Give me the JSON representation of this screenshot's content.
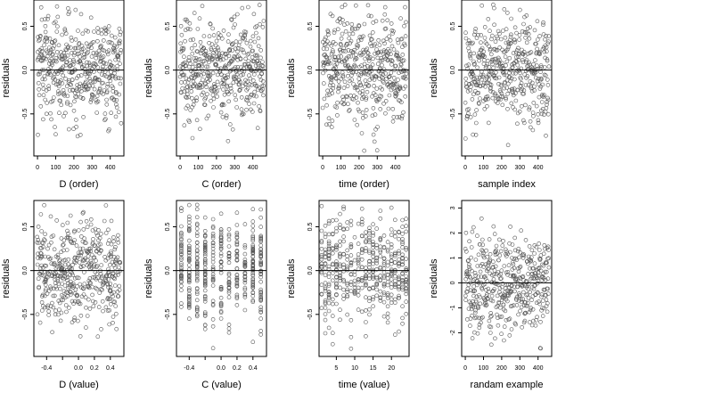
{
  "chart_data": [
    {
      "type": "scatter",
      "id": "p1",
      "xlabel": "D (order)",
      "ylabel": "residuals",
      "xlim": [
        -20,
        475
      ],
      "ylim": [
        -0.98,
        0.8
      ],
      "xticks": [
        0,
        100,
        200,
        300,
        400
      ],
      "xtick_labels": [
        "0",
        "100",
        "200",
        "300",
        "400"
      ],
      "yticks": [
        -0.5,
        0,
        0.5
      ],
      "ytick_labels": [
        "-0.5",
        "0.0",
        "0.5"
      ],
      "hline": 0,
      "n_points": 460,
      "x_mode": "index",
      "x_range": [
        0,
        460
      ],
      "y_mean": 0.02,
      "y_sd": 0.3,
      "y_range": [
        -0.92,
        0.75
      ]
    },
    {
      "type": "scatter",
      "id": "p2",
      "xlabel": "C (order)",
      "ylabel": "residuals",
      "xlim": [
        -20,
        475
      ],
      "ylim": [
        -0.98,
        0.8
      ],
      "xticks": [
        0,
        100,
        200,
        300,
        400
      ],
      "xtick_labels": [
        "0",
        "100",
        "200",
        "300",
        "400"
      ],
      "yticks": [
        -0.5,
        0,
        0.5
      ],
      "ytick_labels": [
        "-0.5",
        "0.0",
        "0.5"
      ],
      "hline": 0,
      "n_points": 460,
      "x_mode": "index",
      "x_range": [
        0,
        460
      ],
      "y_mean": 0.02,
      "y_sd": 0.3,
      "y_range": [
        -0.92,
        0.75
      ]
    },
    {
      "type": "scatter",
      "id": "p3",
      "xlabel": "time (order)",
      "ylabel": "residuals",
      "xlim": [
        -20,
        475
      ],
      "ylim": [
        -0.98,
        0.8
      ],
      "xticks": [
        0,
        100,
        200,
        300,
        400
      ],
      "xtick_labels": [
        "0",
        "100",
        "200",
        "300",
        "400"
      ],
      "yticks": [
        -0.5,
        0,
        0.5
      ],
      "ytick_labels": [
        "-0.5",
        "0.0",
        "0.5"
      ],
      "hline": 0,
      "n_points": 460,
      "x_mode": "index",
      "x_range": [
        0,
        460
      ],
      "y_mean": 0.02,
      "y_sd": 0.3,
      "y_range": [
        -0.92,
        0.75
      ]
    },
    {
      "type": "scatter",
      "id": "p4",
      "xlabel": "sample index",
      "ylabel": "residuals",
      "xlim": [
        -20,
        475
      ],
      "ylim": [
        -0.98,
        0.8
      ],
      "xticks": [
        0,
        100,
        200,
        300,
        400
      ],
      "xtick_labels": [
        "0",
        "100",
        "200",
        "300",
        "400"
      ],
      "yticks": [
        -0.5,
        0,
        0.5
      ],
      "ytick_labels": [
        "-0.5",
        "0.0",
        "0.5"
      ],
      "hline": 0,
      "n_points": 460,
      "x_mode": "index",
      "x_range": [
        0,
        460
      ],
      "y_mean": 0.02,
      "y_sd": 0.3,
      "y_range": [
        -0.92,
        0.75
      ]
    },
    {
      "type": "scatter",
      "id": "p5",
      "xlabel": "D (value)",
      "ylabel": "residuals",
      "xlim": [
        -0.56,
        0.57
      ],
      "ylim": [
        -0.98,
        0.8
      ],
      "xticks": [
        -0.4,
        -0.2,
        0.0,
        0.2,
        0.4
      ],
      "xtick_labels": [
        "-0.4",
        "",
        "0.0",
        "0.2",
        "0.4"
      ],
      "yticks": [
        -0.5,
        0,
        0.5
      ],
      "ytick_labels": [
        "-0.5",
        "0.0",
        "0.5"
      ],
      "hline": 0,
      "n_points": 460,
      "x_mode": "uniform",
      "x_range": [
        -0.52,
        0.53
      ],
      "y_mean": 0.02,
      "y_sd": 0.3,
      "y_range": [
        -0.92,
        0.75
      ]
    },
    {
      "type": "scatter",
      "id": "p6",
      "xlabel": "C (value)",
      "ylabel": "residuals",
      "xlim": [
        -0.56,
        0.57
      ],
      "ylim": [
        -0.98,
        0.8
      ],
      "xticks": [
        -0.4,
        -0.2,
        0.0,
        0.2,
        0.4
      ],
      "xtick_labels": [
        "-0.4",
        "",
        "0.0",
        "0.2",
        "0.4"
      ],
      "yticks": [
        -0.5,
        0,
        0.5
      ],
      "ytick_labels": [
        "-0.5",
        "0.0",
        "0.5"
      ],
      "hline": 0,
      "n_points": 460,
      "x_mode": "discrete",
      "x_levels": [
        -0.5,
        -0.4,
        -0.3,
        -0.2,
        -0.1,
        0.0,
        0.1,
        0.2,
        0.3,
        0.4,
        0.5
      ],
      "y_mean": 0.02,
      "y_sd": 0.3,
      "y_range": [
        -0.92,
        0.75
      ]
    },
    {
      "type": "scatter",
      "id": "p7",
      "xlabel": "time (value)",
      "ylabel": "residuals",
      "xlim": [
        0.3,
        24.8
      ],
      "ylim": [
        -0.98,
        0.8
      ],
      "xticks": [
        5,
        10,
        15,
        20
      ],
      "xtick_labels": [
        "5",
        "10",
        "15",
        "20"
      ],
      "yticks": [
        -0.5,
        0,
        0.5
      ],
      "ytick_labels": [
        "-0.5",
        "0.0",
        "0.5"
      ],
      "hline": 0,
      "n_points": 460,
      "x_mode": "discrete",
      "x_levels": [
        1,
        2,
        3,
        4,
        5,
        6,
        7,
        8,
        9,
        10,
        11,
        12,
        13,
        14,
        15,
        16,
        17,
        18,
        19,
        20,
        21,
        22,
        23,
        24
      ],
      "y_mean": 0.02,
      "y_sd": 0.3,
      "y_range": [
        -0.92,
        0.75
      ]
    },
    {
      "type": "scatter",
      "id": "p8",
      "xlabel": "randam example",
      "ylabel": "residuals",
      "xlim": [
        -20,
        475
      ],
      "ylim": [
        -2.95,
        3.3
      ],
      "xticks": [
        0,
        100,
        200,
        300,
        400
      ],
      "xtick_labels": [
        "0",
        "100",
        "200",
        "300",
        "400"
      ],
      "yticks": [
        -2,
        -1,
        0,
        1,
        2,
        3
      ],
      "ytick_labels": [
        "-2",
        "-1",
        "0",
        "1",
        "2",
        "3"
      ],
      "hline": 0,
      "n_points": 460,
      "x_mode": "index",
      "x_range": [
        0,
        460
      ],
      "y_mean": 0.0,
      "y_sd": 1.0,
      "y_range": [
        -2.8,
        3.1
      ]
    }
  ],
  "style": {
    "point_color": "#555555",
    "axis_color": "#000000",
    "background": "#ffffff"
  }
}
